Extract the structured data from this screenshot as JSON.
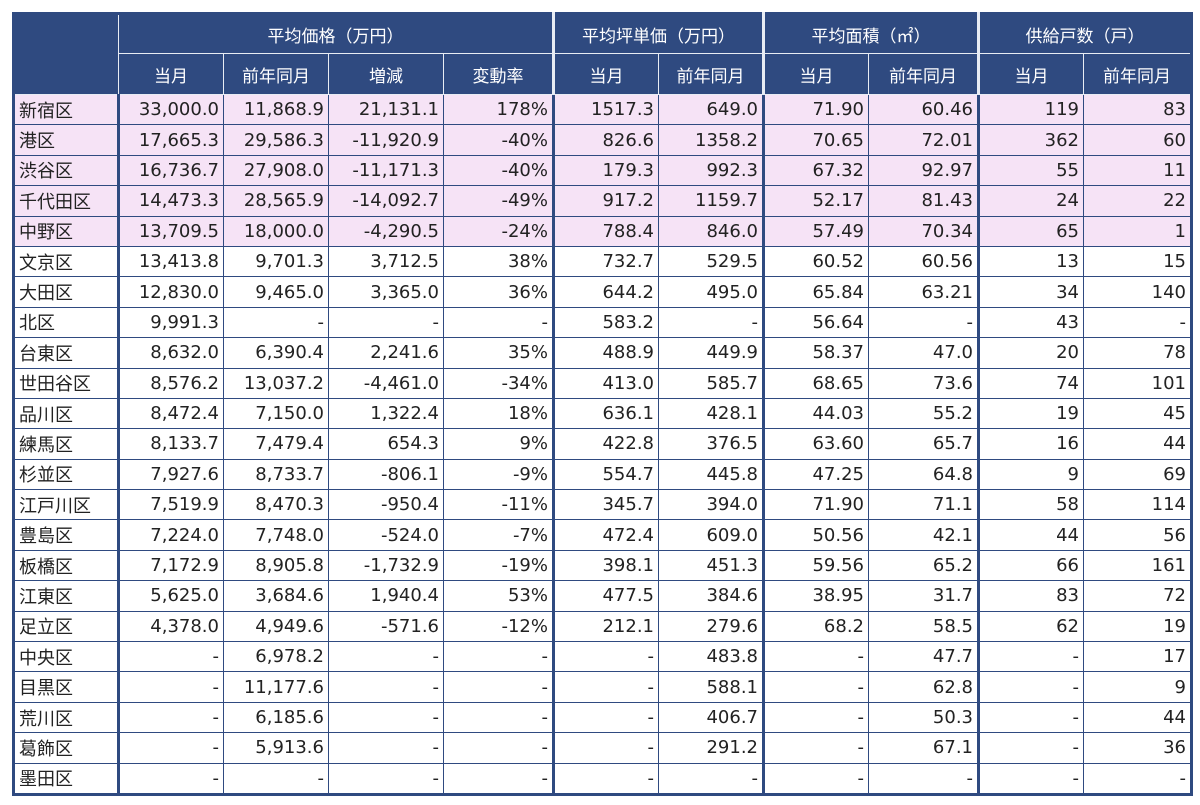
{
  "table": {
    "groups": [
      {
        "label": "平均価格（万円）",
        "span": 4
      },
      {
        "label": "平均坪単価（万円）",
        "span": 2
      },
      {
        "label": "平均面積（㎡）",
        "span": 2
      },
      {
        "label": "供給戸数（戸）",
        "span": 2
      }
    ],
    "subheaders": [
      "当月",
      "前年同月",
      "増減",
      "変動率",
      "当月",
      "前年同月",
      "当月",
      "前年同月",
      "当月",
      "前年同月"
    ],
    "rows": [
      {
        "highlight": true,
        "cells": [
          "新宿区",
          "33,000.0",
          "11,868.9",
          "21,131.1",
          "178%",
          "1517.3",
          "649.0",
          "71.90",
          "60.46",
          "119",
          "83"
        ]
      },
      {
        "highlight": true,
        "cells": [
          "港区",
          "17,665.3",
          "29,586.3",
          "-11,920.9",
          "-40%",
          "826.6",
          "1358.2",
          "70.65",
          "72.01",
          "362",
          "60"
        ]
      },
      {
        "highlight": true,
        "cells": [
          "渋谷区",
          "16,736.7",
          "27,908.0",
          "-11,171.3",
          "-40%",
          "179.3",
          "992.3",
          "67.32",
          "92.97",
          "55",
          "11"
        ]
      },
      {
        "highlight": true,
        "cells": [
          "千代田区",
          "14,473.3",
          "28,565.9",
          "-14,092.7",
          "-49%",
          "917.2",
          "1159.7",
          "52.17",
          "81.43",
          "24",
          "22"
        ]
      },
      {
        "highlight": true,
        "cells": [
          "中野区",
          "13,709.5",
          "18,000.0",
          "-4,290.5",
          "-24%",
          "788.4",
          "846.0",
          "57.49",
          "70.34",
          "65",
          "1"
        ]
      },
      {
        "highlight": false,
        "cells": [
          "文京区",
          "13,413.8",
          "9,701.3",
          "3,712.5",
          "38%",
          "732.7",
          "529.5",
          "60.52",
          "60.56",
          "13",
          "15"
        ]
      },
      {
        "highlight": false,
        "cells": [
          "大田区",
          "12,830.0",
          "9,465.0",
          "3,365.0",
          "36%",
          "644.2",
          "495.0",
          "65.84",
          "63.21",
          "34",
          "140"
        ]
      },
      {
        "highlight": false,
        "cells": [
          "北区",
          "9,991.3",
          "-",
          "-",
          "-",
          "583.2",
          "-",
          "56.64",
          "-",
          "43",
          "-"
        ]
      },
      {
        "highlight": false,
        "cells": [
          "台東区",
          "8,632.0",
          "6,390.4",
          "2,241.6",
          "35%",
          "488.9",
          "449.9",
          "58.37",
          "47.0",
          "20",
          "78"
        ]
      },
      {
        "highlight": false,
        "cells": [
          "世田谷区",
          "8,576.2",
          "13,037.2",
          "-4,461.0",
          "-34%",
          "413.0",
          "585.7",
          "68.65",
          "73.6",
          "74",
          "101"
        ]
      },
      {
        "highlight": false,
        "cells": [
          "品川区",
          "8,472.4",
          "7,150.0",
          "1,322.4",
          "18%",
          "636.1",
          "428.1",
          "44.03",
          "55.2",
          "19",
          "45"
        ]
      },
      {
        "highlight": false,
        "cells": [
          "練馬区",
          "8,133.7",
          "7,479.4",
          "654.3",
          "9%",
          "422.8",
          "376.5",
          "63.60",
          "65.7",
          "16",
          "44"
        ]
      },
      {
        "highlight": false,
        "cells": [
          "杉並区",
          "7,927.6",
          "8,733.7",
          "-806.1",
          "-9%",
          "554.7",
          "445.8",
          "47.25",
          "64.8",
          "9",
          "69"
        ]
      },
      {
        "highlight": false,
        "cells": [
          "江戸川区",
          "7,519.9",
          "8,470.3",
          "-950.4",
          "-11%",
          "345.7",
          "394.0",
          "71.90",
          "71.1",
          "58",
          "114"
        ]
      },
      {
        "highlight": false,
        "cells": [
          "豊島区",
          "7,224.0",
          "7,748.0",
          "-524.0",
          "-7%",
          "472.4",
          "609.0",
          "50.56",
          "42.1",
          "44",
          "56"
        ]
      },
      {
        "highlight": false,
        "cells": [
          "板橋区",
          "7,172.9",
          "8,905.8",
          "-1,732.9",
          "-19%",
          "398.1",
          "451.3",
          "59.56",
          "65.2",
          "66",
          "161"
        ]
      },
      {
        "highlight": false,
        "cells": [
          "江東区",
          "5,625.0",
          "3,684.6",
          "1,940.4",
          "53%",
          "477.5",
          "384.6",
          "38.95",
          "31.7",
          "83",
          "72"
        ]
      },
      {
        "highlight": false,
        "cells": [
          "足立区",
          "4,378.0",
          "4,949.6",
          "-571.6",
          "-12%",
          "212.1",
          "279.6",
          "68.2",
          "58.5",
          "62",
          "19"
        ]
      },
      {
        "highlight": false,
        "cells": [
          "中央区",
          "-",
          "6,978.2",
          "-",
          "-",
          "-",
          "483.8",
          "-",
          "47.7",
          "-",
          "17"
        ]
      },
      {
        "highlight": false,
        "cells": [
          "目黒区",
          "-",
          "11,177.6",
          "-",
          "-",
          "-",
          "588.1",
          "-",
          "62.8",
          "-",
          "9"
        ]
      },
      {
        "highlight": false,
        "cells": [
          "荒川区",
          "-",
          "6,185.6",
          "-",
          "-",
          "-",
          "406.7",
          "-",
          "50.3",
          "-",
          "44"
        ]
      },
      {
        "highlight": false,
        "cells": [
          "葛飾区",
          "-",
          "5,913.6",
          "-",
          "-",
          "-",
          "291.2",
          "-",
          "67.1",
          "-",
          "36"
        ]
      },
      {
        "highlight": false,
        "cells": [
          "墨田区",
          "-",
          "-",
          "-",
          "-",
          "-",
          "-",
          "-",
          "-",
          "-",
          "-"
        ]
      }
    ]
  }
}
